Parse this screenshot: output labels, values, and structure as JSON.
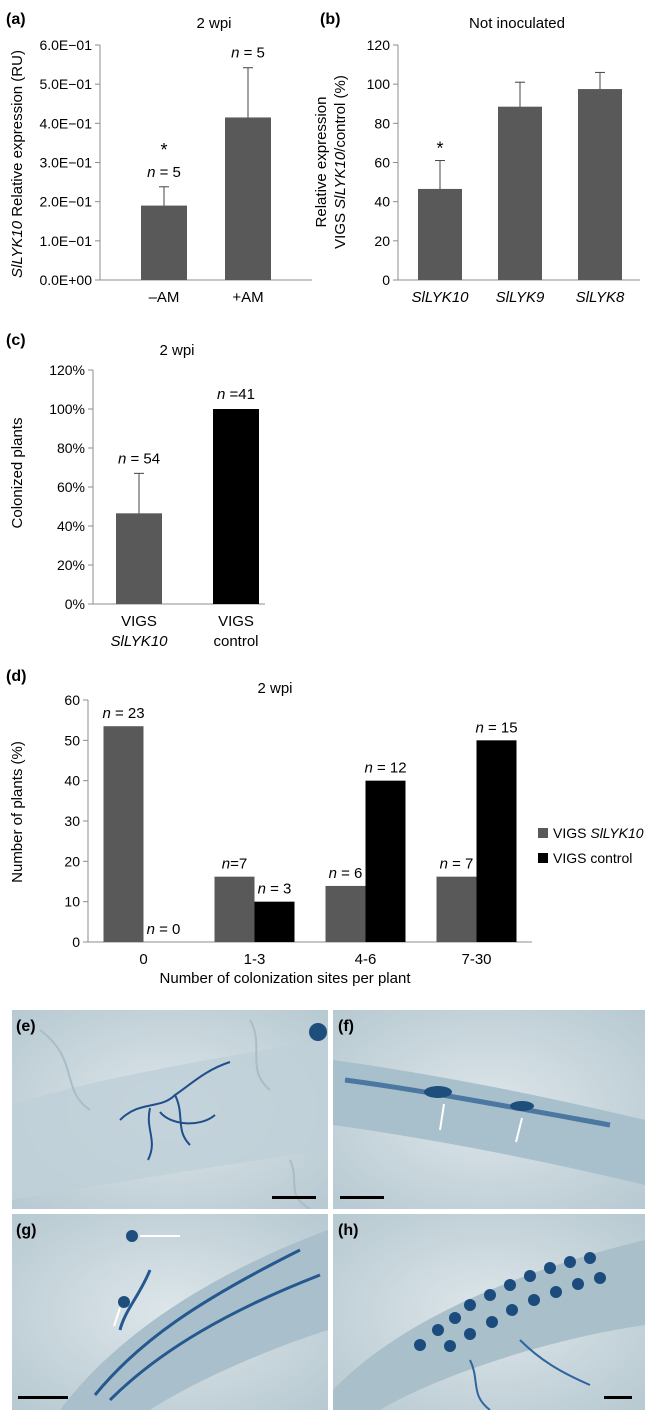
{
  "colors": {
    "dark_gray": "#595959",
    "black": "#000000",
    "axis": "#8c8c8c",
    "micro_bg": "#c9d6db",
    "stain": "#24588f"
  },
  "chart_data": [
    {
      "panel": "(a)",
      "type": "bar",
      "title": "2 wpi",
      "ylabel_italic": "SlLYK10",
      "ylabel_rest": " Relative expression (RU)",
      "categories": [
        "–AM",
        "+AM"
      ],
      "values": [
        0.19,
        0.415
      ],
      "errors": [
        0.048,
        0.127
      ],
      "ylim": [
        0,
        0.6
      ],
      "yticks": [
        0,
        0.1,
        0.2,
        0.3,
        0.4,
        0.5,
        0.6
      ],
      "ytick_labels": [
        "0.0E+00",
        "1.0E−01",
        "2.0E−01",
        "3.0E−01",
        "4.0E−01",
        "5.0E−01",
        "6.0E−01"
      ],
      "bar_labels": [
        "n = 5",
        "n = 5"
      ],
      "stars": [
        "*",
        ""
      ]
    },
    {
      "panel": "(b)",
      "type": "bar",
      "title": "Not inoculated",
      "ylabel_line1": "Relative expression",
      "ylabel_line2_pre": "VIGS ",
      "ylabel_line2_italic": "SlLYK10",
      "ylabel_line2_post": "/control (%)",
      "categories": [
        "SlLYK10",
        "SlLYK9",
        "SlLYK8"
      ],
      "values": [
        46.5,
        88.5,
        97.5
      ],
      "errors": [
        14.5,
        12.5,
        8.5
      ],
      "ylim": [
        0,
        120
      ],
      "yticks": [
        0,
        20,
        40,
        60,
        80,
        100,
        120
      ],
      "ytick_labels": [
        "0",
        "20",
        "40",
        "60",
        "80",
        "100",
        "120"
      ],
      "stars": [
        "*",
        "",
        ""
      ]
    },
    {
      "panel": "(c)",
      "type": "bar",
      "title": "2 wpi",
      "ylabel": "Colonized plants",
      "categories_line1": [
        "VIGS",
        "VIGS"
      ],
      "categories_line2": [
        "SlLYK10",
        "control"
      ],
      "values": [
        46.5,
        100
      ],
      "errors": [
        20.5,
        0
      ],
      "ylim": [
        0,
        120
      ],
      "yticks": [
        0,
        20,
        40,
        60,
        80,
        100,
        120
      ],
      "ytick_labels": [
        "0%",
        "20%",
        "40%",
        "60%",
        "80%",
        "100%",
        "120%"
      ],
      "bar_labels": [
        "n = 54",
        "n =41"
      ]
    },
    {
      "panel": "(d)",
      "type": "bar",
      "title": "2 wpi",
      "xlabel": "Number of colonization sites per plant",
      "ylabel": "Number of plants (%)",
      "categories": [
        "0",
        "1-3",
        "4-6",
        "7-30"
      ],
      "series": [
        {
          "legend_pre": "VIGS ",
          "legend_italic": "SlLYK10",
          "values": [
            53.5,
            16.2,
            13.9,
            16.2
          ],
          "labels": [
            "n = 23",
            "n=7",
            "n = 6",
            "n = 7"
          ]
        },
        {
          "legend_pre": "VIGS control",
          "legend_italic": "",
          "values": [
            0,
            10,
            40,
            50
          ],
          "labels": [
            "n = 0",
            "n = 3",
            "n = 12",
            "n = 15"
          ]
        }
      ],
      "ylim": [
        0,
        60
      ],
      "yticks": [
        0,
        10,
        20,
        30,
        40,
        50,
        60
      ],
      "ytick_labels": [
        "0",
        "10",
        "20",
        "30",
        "40",
        "50",
        "60"
      ],
      "legend_position": "right"
    }
  ],
  "micrographs": [
    {
      "panel": "(e)"
    },
    {
      "panel": "(f)"
    },
    {
      "panel": "(g)"
    },
    {
      "panel": "(h)"
    }
  ]
}
